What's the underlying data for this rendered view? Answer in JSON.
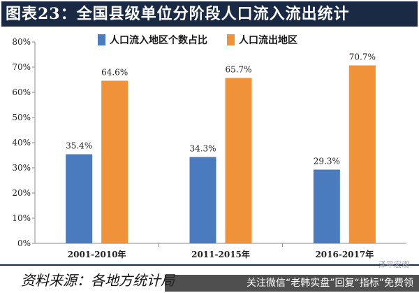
{
  "header": {
    "title": "图表23：全国县级单位分阶段人口流入流出统计"
  },
  "chart_data": {
    "type": "bar",
    "categories": [
      "2001-2010年",
      "2011-2015年",
      "2016-2017年"
    ],
    "series": [
      {
        "name": "人口流入地区个数占比",
        "values": [
          35.4,
          34.3,
          29.3
        ],
        "labels": [
          "35.4%",
          "34.3%",
          "29.3%"
        ],
        "color": "#4a7bbf"
      },
      {
        "name": "人口流出地区",
        "values": [
          64.6,
          65.7,
          70.7
        ],
        "labels": [
          "64.6%",
          "65.7%",
          "70.7%"
        ],
        "color": "#f0923a"
      }
    ],
    "ylim": [
      0,
      80
    ],
    "yticks": [
      0,
      10,
      20,
      30,
      40,
      50,
      60,
      70,
      80
    ],
    "ytick_labels": [
      "0%",
      "10%",
      "20%",
      "30%",
      "40%",
      "50%",
      "60%",
      "70%",
      "80%"
    ],
    "grid": false,
    "legend_position": "top"
  },
  "footer": {
    "source_text": "资料来源：各地方统计局",
    "overlay_text": "关注微信“老韩实盘”回复“指标”免费领",
    "watermark": "泽平宏观"
  }
}
